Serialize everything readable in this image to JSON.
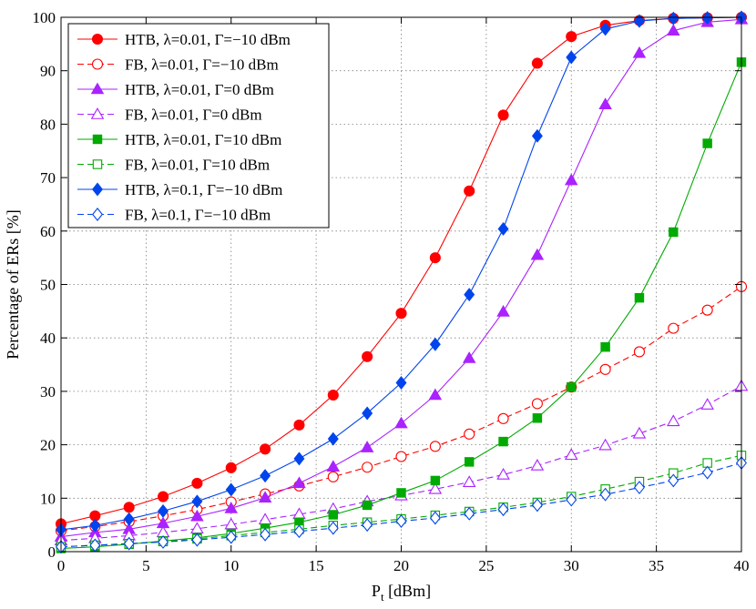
{
  "chart_data": {
    "type": "line",
    "title": "",
    "xlabel": "P",
    "xlabel_sub": "t",
    "xlabel_unit": " [dBm]",
    "ylabel": "Percentage of ERs [%]",
    "xlim": [
      0,
      40
    ],
    "ylim": [
      0,
      100
    ],
    "xticks": [
      0,
      5,
      10,
      15,
      20,
      25,
      30,
      35,
      40
    ],
    "yticks": [
      0,
      10,
      20,
      30,
      40,
      50,
      60,
      70,
      80,
      90,
      100
    ],
    "grid": true,
    "legend_position": "top-left",
    "x": [
      0,
      2,
      4,
      6,
      8,
      10,
      12,
      14,
      16,
      18,
      20,
      22,
      24,
      26,
      28,
      30,
      32,
      34,
      36,
      38,
      40
    ],
    "series": [
      {
        "name": "HTB, λ=0.01, Γ=−10 dBm",
        "color": "#ff0000",
        "dash": "solid",
        "marker": "circle",
        "filled": true,
        "values": [
          5.2,
          6.7,
          8.3,
          10.3,
          12.8,
          15.7,
          19.2,
          23.7,
          29.3,
          36.5,
          44.6,
          55,
          67.5,
          81.7,
          91.4,
          96.4,
          98.5,
          99.4,
          99.8,
          99.9,
          100
        ]
      },
      {
        "name": "FB, λ=0.01, Γ=−10 dBm",
        "color": "#ff0000",
        "dash": "dashed",
        "marker": "circle",
        "filled": false,
        "values": [
          3.9,
          4.7,
          5.6,
          6.7,
          7.9,
          9.3,
          10.8,
          12.3,
          14,
          15.8,
          17.8,
          19.7,
          22,
          24.9,
          27.7,
          30.8,
          34.1,
          37.4,
          41.8,
          45.2,
          49.6
        ]
      },
      {
        "name": "HTB, λ=0.01, Γ=0 dBm",
        "color": "#aa22ff",
        "dash": "solid",
        "marker": "triangle",
        "filled": true,
        "values": [
          2.8,
          3.6,
          4.2,
          5.3,
          6.6,
          8.1,
          10.1,
          12.8,
          15.9,
          19.5,
          24,
          29.3,
          36.2,
          44.9,
          55.5,
          69.5,
          83.7,
          93.3,
          97.5,
          99.1,
          99.6
        ]
      },
      {
        "name": "FB, λ=0.01, Γ=0 dBm",
        "color": "#aa22ff",
        "dash": "dashed",
        "marker": "triangle",
        "filled": false,
        "values": [
          2.1,
          2.5,
          3,
          3.6,
          4.3,
          5.1,
          6,
          7,
          8,
          9.4,
          10.5,
          11.7,
          13,
          14.4,
          16.1,
          18.1,
          19.9,
          22.1,
          24.4,
          27.5,
          31
        ]
      },
      {
        "name": "HTB, λ=0.01, Γ=10 dBm",
        "color": "#00aa00",
        "dash": "solid",
        "marker": "square",
        "filled": true,
        "values": [
          0.6,
          0.9,
          1.4,
          2,
          2.6,
          3.4,
          4.4,
          5.5,
          6.9,
          8.7,
          11,
          13.3,
          16.8,
          20.6,
          25,
          30.8,
          38.3,
          47.5,
          59.8,
          76.4,
          91.6
        ]
      },
      {
        "name": "FB, λ=0.01, Γ=10 dBm",
        "color": "#00aa00",
        "dash": "dashed",
        "marker": "square",
        "filled": false,
        "values": [
          0.9,
          1.2,
          1.5,
          1.9,
          2.4,
          3,
          3.6,
          4.2,
          4.9,
          5.5,
          6.1,
          6.8,
          7.5,
          8.3,
          9.2,
          10.3,
          11.7,
          13.1,
          14.7,
          16.6,
          18
        ]
      },
      {
        "name": "HTB, λ=0.1, Γ=−10 dBm",
        "color": "#0044ee",
        "dash": "solid",
        "marker": "diamond",
        "filled": true,
        "values": [
          4.1,
          4.9,
          6.1,
          7.6,
          9.4,
          11.6,
          14.2,
          17.4,
          21.1,
          25.9,
          31.6,
          38.8,
          48.1,
          60.4,
          77.8,
          92.5,
          97.8,
          99.3,
          99.8,
          99.9,
          100
        ]
      },
      {
        "name": "FB, λ=0.1, Γ=−10 dBm",
        "color": "#0044ee",
        "dash": "dashed",
        "marker": "diamond",
        "filled": false,
        "values": [
          0.9,
          1.2,
          1.5,
          1.8,
          2.2,
          2.7,
          3.2,
          3.8,
          4.4,
          5,
          5.7,
          6.3,
          7.1,
          7.9,
          8.7,
          9.7,
          10.7,
          12,
          13.3,
          14.8,
          16.6
        ]
      }
    ]
  }
}
